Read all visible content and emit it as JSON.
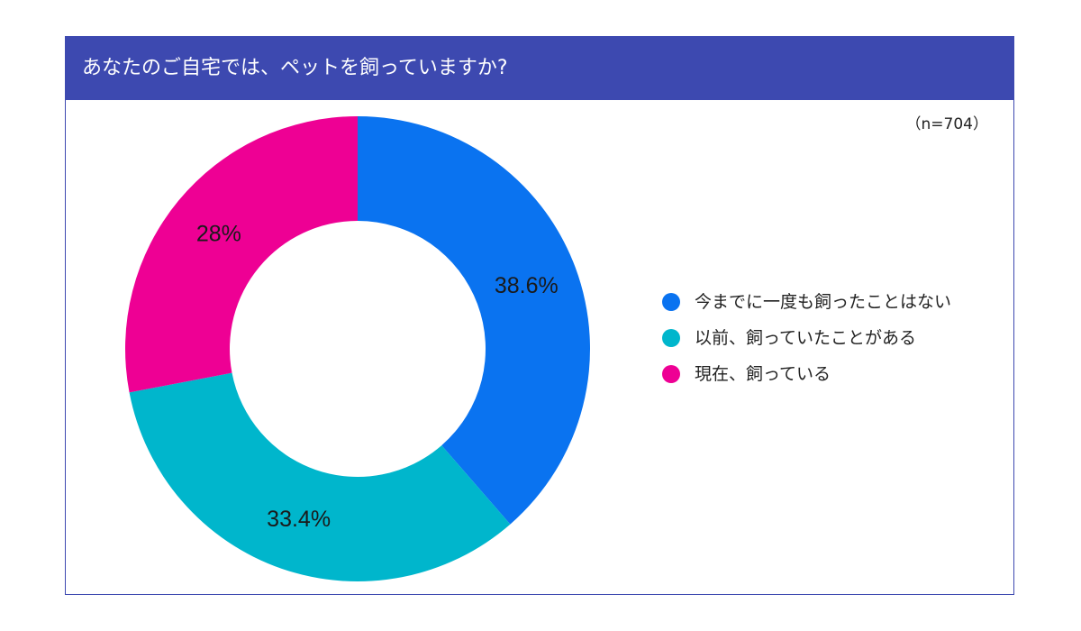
{
  "chart_data": {
    "type": "donut",
    "title": "あなたのご自宅では、ペットを飼っていますか?",
    "sample_size": "（n=704）",
    "categories": [
      "今までに一度も飼ったことはない",
      "以前、飼っていたことがある",
      "現在、飼っている"
    ],
    "values": [
      38.6,
      33.4,
      28
    ],
    "value_labels": [
      "38.6%",
      "33.4%",
      "28%"
    ],
    "colors": [
      "#0a73f0",
      "#00b6cc",
      "#ee0094"
    ],
    "legend_position": "right"
  },
  "legend": {
    "items": [
      {
        "label": "今までに一度も飼ったことはない",
        "color": "#0a73f0"
      },
      {
        "label": "以前、飼っていたことがある",
        "color": "#00b6cc"
      },
      {
        "label": "現在、飼っている",
        "color": "#ee0094"
      }
    ]
  },
  "colors": {
    "header_bg": "#3d49b0",
    "header_text": "#ffffff"
  }
}
